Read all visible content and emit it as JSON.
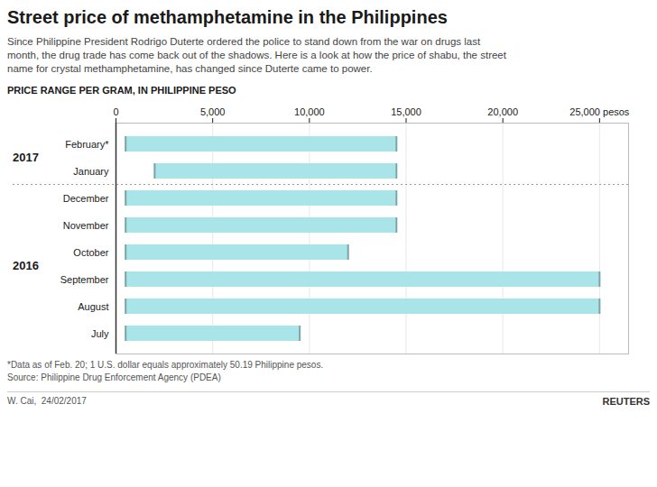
{
  "chart_data": {
    "type": "bar",
    "orientation": "horizontal",
    "title": "Street price of methamphetamine in the Philippines",
    "subtitle": [
      "Since Philippine President Rodrigo Duterte ordered the police to stand down from the war on drugs last",
      "month, the drug trade has come back out of the shadows. Here is a look at how the price of shabu, the street",
      "name for crystal methamphetamine, has changed since Duterte came to power."
    ],
    "xlabel": "PRICE RANGE PER GRAM, IN PHILIPPINE PESO",
    "categories": [
      "February*",
      "January",
      "December",
      "November",
      "October",
      "September",
      "August",
      "July"
    ],
    "low": [
      500,
      2000,
      500,
      500,
      500,
      500,
      500,
      500
    ],
    "high": [
      14500,
      14500,
      14500,
      14500,
      12000,
      25000,
      25000,
      9500
    ],
    "color": "#a8e4e8",
    "xlim": [
      0,
      26500
    ],
    "xticks": [
      0,
      {
        "value": 5000,
        "label": "5,000"
      },
      {
        "value": 10000,
        "label": "10,000"
      },
      {
        "value": 15000,
        "label": "15,000"
      },
      {
        "value": 20000,
        "label": "20,000"
      },
      {
        "value": 25000,
        "label": "25,000 pesos"
      }
    ],
    "grid": true,
    "groups": [
      {
        "label": "2017",
        "categories": [
          "February*",
          "January"
        ]
      },
      {
        "label": "2016",
        "categories": [
          "December",
          "November",
          "October",
          "September",
          "August",
          "July"
        ]
      }
    ],
    "footnotes": [
      "*Data as of Feb. 20; 1 U.S. dollar equals approximately 50.19 Philippine pesos.",
      "Source: Philippine Drug Enforcement Agency (PDEA)"
    ],
    "credit": "W. Cai,  24/02/2017",
    "logo": "REUTERS"
  }
}
